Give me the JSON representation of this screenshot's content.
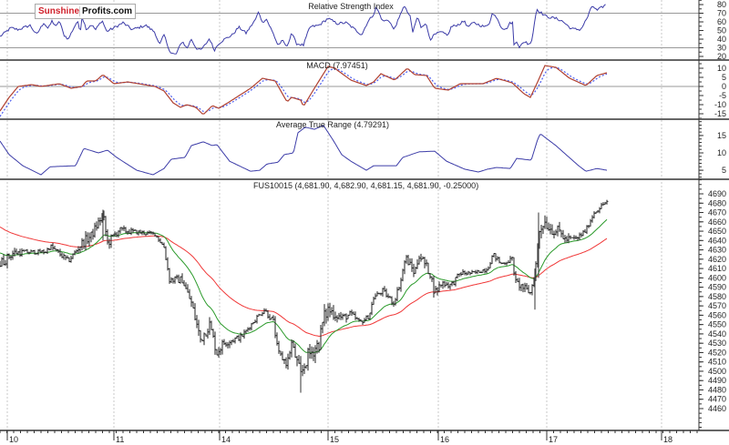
{
  "logo": {
    "part1": "Sunshine",
    "part2": "Profits.com"
  },
  "chart_data": [
    {
      "panel": "rsi",
      "type": "line",
      "title": "Relative Strength Index",
      "ylim": [
        15.8,
        85.3
      ],
      "ticks": [
        20,
        30,
        40,
        50,
        60,
        70,
        80
      ],
      "reference_lines": [
        30,
        70
      ],
      "color": "#3c3ca8",
      "points": [
        [
          0,
          43
        ],
        [
          12,
          53
        ],
        [
          20,
          51
        ],
        [
          33,
          56
        ],
        [
          40,
          45
        ],
        [
          48,
          59
        ],
        [
          53,
          52
        ],
        [
          57,
          61
        ],
        [
          62,
          54
        ],
        [
          65,
          62
        ],
        [
          70,
          45
        ],
        [
          75,
          40
        ],
        [
          80,
          51
        ],
        [
          85,
          61
        ],
        [
          88,
          48
        ],
        [
          90,
          66
        ],
        [
          95,
          51
        ],
        [
          100,
          57
        ],
        [
          105,
          51
        ],
        [
          112,
          62
        ],
        [
          117,
          49
        ],
        [
          125,
          53
        ],
        [
          135,
          59
        ],
        [
          145,
          51
        ],
        [
          160,
          56
        ],
        [
          170,
          48
        ],
        [
          175,
          33
        ],
        [
          180,
          45
        ],
        [
          187,
          24
        ],
        [
          193,
          22
        ],
        [
          200,
          38
        ],
        [
          205,
          29
        ],
        [
          210,
          40
        ],
        [
          215,
          30
        ],
        [
          220,
          27
        ],
        [
          225,
          33
        ],
        [
          230,
          41
        ],
        [
          235,
          27
        ],
        [
          240,
          35
        ],
        [
          245,
          39
        ],
        [
          255,
          45
        ],
        [
          262,
          54
        ],
        [
          270,
          47
        ],
        [
          280,
          62
        ],
        [
          284,
          72
        ],
        [
          288,
          59
        ],
        [
          292,
          64
        ],
        [
          300,
          46
        ],
        [
          305,
          33
        ],
        [
          310,
          38
        ],
        [
          315,
          31
        ],
        [
          320,
          48
        ],
        [
          325,
          35
        ],
        [
          333,
          33
        ],
        [
          340,
          54
        ],
        [
          350,
          56
        ],
        [
          360,
          64
        ],
        [
          370,
          58
        ],
        [
          380,
          59
        ],
        [
          397,
          45
        ],
        [
          403,
          59
        ],
        [
          410,
          69
        ],
        [
          413,
          77
        ],
        [
          420,
          61
        ],
        [
          427,
          62
        ],
        [
          432,
          51
        ],
        [
          438,
          64
        ],
        [
          443,
          79
        ],
        [
          450,
          66
        ],
        [
          453,
          48
        ],
        [
          458,
          66
        ],
        [
          462,
          54
        ],
        [
          467,
          59
        ],
        [
          472,
          40
        ],
        [
          477,
          45
        ],
        [
          483,
          48
        ],
        [
          492,
          45
        ],
        [
          495,
          54
        ],
        [
          503,
          57
        ],
        [
          510,
          61
        ],
        [
          513,
          54
        ],
        [
          520,
          59
        ],
        [
          527,
          56
        ],
        [
          533,
          54
        ],
        [
          537,
          59
        ],
        [
          540,
          69
        ],
        [
          545,
          66
        ],
        [
          550,
          54
        ],
        [
          555,
          51
        ],
        [
          560,
          59
        ],
        [
          563,
          59
        ],
        [
          564,
          33
        ],
        [
          567,
          38
        ],
        [
          570,
          31
        ],
        [
          577,
          38
        ],
        [
          580,
          33
        ],
        [
          584,
          40
        ],
        [
          586,
          56
        ],
        [
          589,
          75
        ],
        [
          593,
          71
        ],
        [
          600,
          66
        ],
        [
          610,
          64
        ],
        [
          617,
          61
        ],
        [
          627,
          52
        ],
        [
          637,
          51
        ],
        [
          640,
          56
        ],
        [
          645,
          66
        ],
        [
          650,
          79
        ],
        [
          655,
          73
        ],
        [
          665,
          80
        ]
      ]
    },
    {
      "panel": "macd",
      "type": "line",
      "title": "MACD (7.97451)",
      "ylim": [
        -18,
        14.5
      ],
      "ticks": [
        10,
        5,
        0,
        -5,
        -10,
        -15
      ],
      "reference_lines": [
        0
      ],
      "series": [
        {
          "name": "MACD",
          "color": "#b04030"
        },
        {
          "name": "Signal",
          "color": "#4a5cf0",
          "dashed": true,
          "ema_period": 5
        }
      ],
      "points": [
        [
          0,
          -13.5
        ],
        [
          10,
          -6
        ],
        [
          20,
          0
        ],
        [
          35,
          1
        ],
        [
          45,
          0
        ],
        [
          65,
          1.5
        ],
        [
          78,
          -1
        ],
        [
          90,
          0
        ],
        [
          95,
          3
        ],
        [
          105,
          3
        ],
        [
          113,
          6.5
        ],
        [
          125,
          1.5
        ],
        [
          140,
          2.5
        ],
        [
          170,
          0
        ],
        [
          180,
          -2.5
        ],
        [
          190,
          -9
        ],
        [
          198,
          -11.5
        ],
        [
          205,
          -10
        ],
        [
          215,
          -11.5
        ],
        [
          223,
          -15.5
        ],
        [
          233,
          -10.5
        ],
        [
          240,
          -12
        ],
        [
          250,
          -9
        ],
        [
          275,
          -1
        ],
        [
          288,
          4.5
        ],
        [
          302,
          3
        ],
        [
          315,
          -8.5
        ],
        [
          320,
          -6
        ],
        [
          330,
          -7.5
        ],
        [
          333,
          -11
        ],
        [
          345,
          -1
        ],
        [
          360,
          11
        ],
        [
          368,
          10
        ],
        [
          370,
          9
        ],
        [
          385,
          3.5
        ],
        [
          402,
          0.5
        ],
        [
          410,
          2.5
        ],
        [
          418,
          7
        ],
        [
          433,
          3.5
        ],
        [
          447,
          10
        ],
        [
          455,
          6.5
        ],
        [
          468,
          6
        ],
        [
          477,
          -1
        ],
        [
          492,
          -2
        ],
        [
          505,
          1.5
        ],
        [
          530,
          1.5
        ],
        [
          545,
          4.5
        ],
        [
          562,
          2
        ],
        [
          575,
          -4
        ],
        [
          582,
          -6
        ],
        [
          590,
          2.5
        ],
        [
          598,
          11.5
        ],
        [
          610,
          10.5
        ],
        [
          625,
          4.5
        ],
        [
          643,
          0.5
        ],
        [
          655,
          6
        ],
        [
          666,
          7.5
        ]
      ]
    },
    {
      "panel": "atr",
      "type": "line",
      "title": "Average True Range (4.79291)",
      "ylim": [
        2.4,
        19.7
      ],
      "ticks": [
        5,
        10,
        15
      ],
      "color": "#3c3ca8",
      "points": [
        [
          0,
          13.4
        ],
        [
          10,
          9.5
        ],
        [
          25,
          6.3
        ],
        [
          45,
          3.7
        ],
        [
          55,
          6
        ],
        [
          83,
          6.3
        ],
        [
          92,
          11.3
        ],
        [
          108,
          10
        ],
        [
          118,
          10.8
        ],
        [
          128,
          8.7
        ],
        [
          150,
          5
        ],
        [
          168,
          3.7
        ],
        [
          180,
          5.5
        ],
        [
          188,
          8.2
        ],
        [
          203,
          8.7
        ],
        [
          210,
          12.1
        ],
        [
          223,
          13.2
        ],
        [
          233,
          12.1
        ],
        [
          238,
          12.4
        ],
        [
          252,
          7.6
        ],
        [
          275,
          4.7
        ],
        [
          285,
          5
        ],
        [
          293,
          6.8
        ],
        [
          305,
          7.3
        ],
        [
          312,
          9.5
        ],
        [
          322,
          10
        ],
        [
          327,
          15.8
        ],
        [
          335,
          17.4
        ],
        [
          345,
          16.8
        ],
        [
          355,
          17.9
        ],
        [
          365,
          13.9
        ],
        [
          375,
          9.5
        ],
        [
          385,
          7.6
        ],
        [
          402,
          5
        ],
        [
          410,
          6.3
        ],
        [
          435,
          6.3
        ],
        [
          442,
          8.7
        ],
        [
          460,
          10.3
        ],
        [
          477,
          10.5
        ],
        [
          490,
          7.6
        ],
        [
          510,
          5.3
        ],
        [
          525,
          4.5
        ],
        [
          535,
          5.3
        ],
        [
          545,
          5.8
        ],
        [
          560,
          5.5
        ],
        [
          567,
          8.4
        ],
        [
          583,
          7.9
        ],
        [
          590,
          13.9
        ],
        [
          593,
          15.5
        ],
        [
          610,
          12.1
        ],
        [
          635,
          6.3
        ],
        [
          643,
          4.7
        ],
        [
          655,
          5.5
        ],
        [
          666,
          5
        ]
      ]
    },
    {
      "panel": "price",
      "type": "ohlc",
      "title": "FUS10015 (4,681.90, 4,682.90, 4,681.15, 4,681.90, -0.25000)",
      "ylim": [
        4436.6,
        4705.6
      ],
      "ticks": [
        4460,
        4470,
        4480,
        4490,
        4500,
        4510,
        4520,
        4530,
        4540,
        4550,
        4560,
        4570,
        4580,
        4590,
        4600,
        4610,
        4620,
        4630,
        4640,
        4650,
        4660,
        4670,
        4680,
        4690
      ],
      "bar_color": "#222222",
      "close_path": [
        [
          0,
          4615
        ],
        [
          15,
          4627
        ],
        [
          50,
          4628
        ],
        [
          55,
          4634
        ],
        [
          75,
          4618
        ],
        [
          90,
          4637
        ],
        [
          100,
          4645
        ],
        [
          113,
          4668
        ],
        [
          118,
          4637
        ],
        [
          130,
          4651
        ],
        [
          170,
          4647
        ],
        [
          180,
          4633
        ],
        [
          186,
          4598
        ],
        [
          200,
          4598
        ],
        [
          210,
          4573
        ],
        [
          220,
          4534
        ],
        [
          230,
          4550
        ],
        [
          238,
          4520
        ],
        [
          245,
          4530
        ],
        [
          265,
          4537
        ],
        [
          283,
          4559
        ],
        [
          290,
          4566
        ],
        [
          300,
          4553
        ],
        [
          305,
          4520
        ],
        [
          315,
          4508
        ],
        [
          320,
          4530
        ],
        [
          330,
          4495
        ],
        [
          337,
          4515
        ],
        [
          350,
          4530
        ],
        [
          355,
          4556
        ],
        [
          360,
          4566
        ],
        [
          375,
          4557
        ],
        [
          385,
          4561
        ],
        [
          395,
          4552
        ],
        [
          405,
          4559
        ],
        [
          410,
          4579
        ],
        [
          420,
          4586
        ],
        [
          432,
          4573
        ],
        [
          440,
          4598
        ],
        [
          445,
          4622
        ],
        [
          455,
          4605
        ],
        [
          460,
          4625
        ],
        [
          466,
          4615
        ],
        [
          472,
          4605
        ],
        [
          477,
          4584
        ],
        [
          485,
          4595
        ],
        [
          495,
          4592
        ],
        [
          505,
          4605
        ],
        [
          520,
          4605
        ],
        [
          535,
          4610
        ],
        [
          541,
          4625
        ],
        [
          550,
          4615
        ],
        [
          562,
          4620
        ],
        [
          566,
          4595
        ],
        [
          575,
          4589
        ],
        [
          582,
          4584
        ],
        [
          587,
          4605
        ],
        [
          592,
          4651
        ],
        [
          597,
          4661
        ],
        [
          605,
          4652
        ],
        [
          615,
          4649
        ],
        [
          620,
          4641
        ],
        [
          633,
          4642
        ],
        [
          643,
          4651
        ],
        [
          652,
          4670
        ],
        [
          666,
          4681.9
        ]
      ],
      "extreme_wicks": [
        {
          "x": 113,
          "low": 4640,
          "high": 4673
        },
        {
          "x": 330,
          "low": 4477,
          "high": 4500
        },
        {
          "x": 587,
          "low": 4566,
          "high": 4610
        },
        {
          "x": 591,
          "low": 4600,
          "high": 4670
        }
      ],
      "moving_averages": [
        {
          "name": "fast",
          "color": "#2a9a2a",
          "ema_period": 22,
          "start": 4628
        },
        {
          "name": "slow",
          "color": "#f03838",
          "ema_period": 60,
          "start": 4656
        }
      ]
    }
  ],
  "x_axis": {
    "xlim": [
      0,
      767
    ],
    "days": [
      {
        "label": "10",
        "x": 8
      },
      {
        "label": "11",
        "x": 125
      },
      {
        "label": "14",
        "x": 241
      },
      {
        "label": "15",
        "x": 360
      },
      {
        "label": "16",
        "x": 481
      },
      {
        "label": "17",
        "x": 600
      },
      {
        "label": "18",
        "x": 726
      }
    ]
  }
}
